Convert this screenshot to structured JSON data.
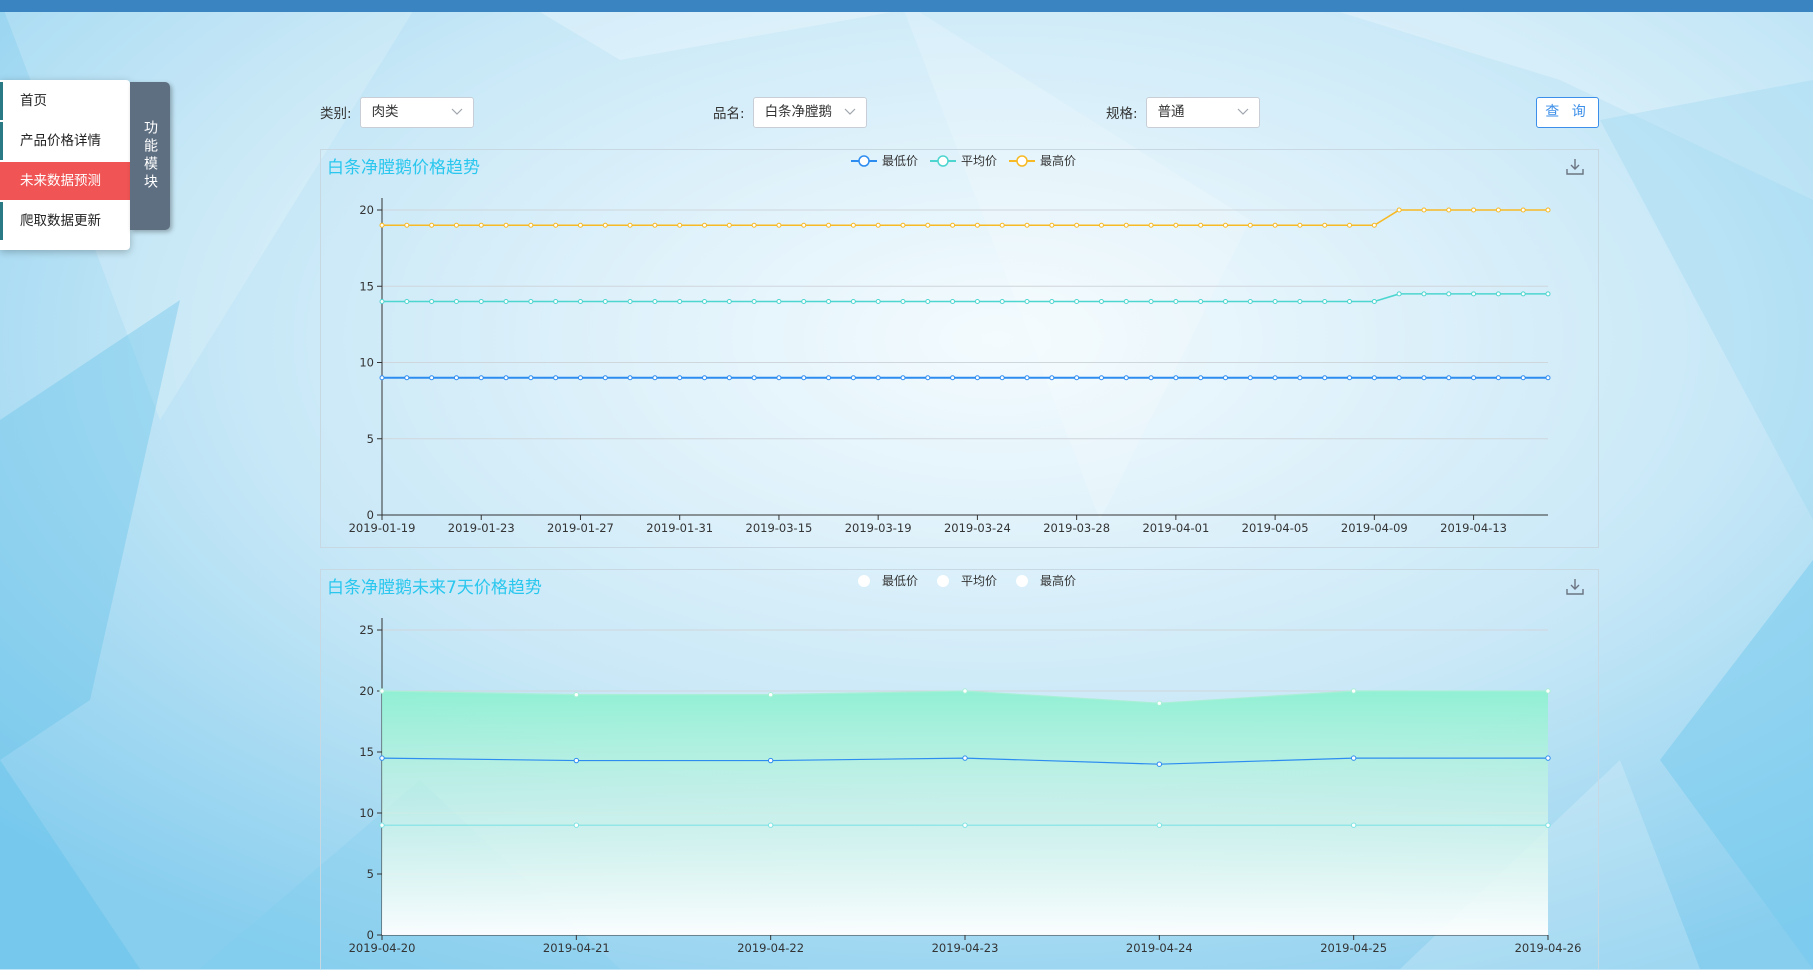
{
  "menu": {
    "items": [
      {
        "label": "首页",
        "active": false
      },
      {
        "label": "产品价格详情",
        "active": false
      },
      {
        "label": "未来数据预测",
        "active": true
      },
      {
        "label": "爬取数据更新",
        "active": false
      }
    ],
    "toggle_label": "功能模块"
  },
  "filters": {
    "category": {
      "label": "类别:",
      "value": "肉类"
    },
    "product": {
      "label": "品名:",
      "value": "白条净膛鹅"
    },
    "spec": {
      "label": "规格:",
      "value": "普通"
    },
    "query_label": "查 询"
  },
  "icons": [
    "chevron-down-icon",
    "download-icon",
    "legend-circle-icon"
  ],
  "colors": {
    "accent": "#3b8ee9",
    "title": "#29c7ee",
    "active_menu": "#f05454",
    "min_price": "#2d8cf0",
    "avg_price": "#4dd5cf",
    "max_price": "#f7b924",
    "area_fill": "#8ef0d2"
  },
  "chart_data": [
    {
      "type": "line",
      "title": "白条净膛鹅价格趋势",
      "legend_position": "top-center",
      "grid": true,
      "ylim": [
        0,
        20
      ],
      "yticks": [
        "0",
        "5",
        "10",
        "15",
        "20"
      ],
      "tick_labels": [
        "2019-01-19",
        "2019-01-23",
        "2019-01-27",
        "2019-01-31",
        "2019-03-15",
        "2019-03-19",
        "2019-03-24",
        "2019-03-28",
        "2019-04-01",
        "2019-04-05",
        "2019-04-09",
        "2019-04-13"
      ],
      "point_count": 48,
      "series": [
        {
          "name": "最低价",
          "values": [
            9,
            9,
            9,
            9,
            9,
            9,
            9,
            9,
            9,
            9,
            9,
            9,
            9,
            9,
            9,
            9,
            9,
            9,
            9,
            9,
            9,
            9,
            9,
            9,
            9,
            9,
            9,
            9,
            9,
            9,
            9,
            9,
            9,
            9,
            9,
            9,
            9,
            9,
            9,
            9,
            9,
            9,
            9,
            9,
            9,
            9,
            9,
            9
          ]
        },
        {
          "name": "平均价",
          "values": [
            14,
            14,
            14,
            14,
            14,
            14,
            14,
            14,
            14,
            14,
            14,
            14,
            14,
            14,
            14,
            14,
            14,
            14,
            14,
            14,
            14,
            14,
            14,
            14,
            14,
            14,
            14,
            14,
            14,
            14,
            14,
            14,
            14,
            14,
            14,
            14,
            14,
            14,
            14,
            14,
            14,
            14.5,
            14.5,
            14.5,
            14.5,
            14.5,
            14.5,
            14.5
          ]
        },
        {
          "name": "最高价",
          "values": [
            19,
            19,
            19,
            19,
            19,
            19,
            19,
            19,
            19,
            19,
            19,
            19,
            19,
            19,
            19,
            19,
            19,
            19,
            19,
            19,
            19,
            19,
            19,
            19,
            19,
            19,
            19,
            19,
            19,
            19,
            19,
            19,
            19,
            19,
            19,
            19,
            19,
            19,
            19,
            19,
            19,
            20,
            20,
            20,
            20,
            20,
            20,
            20
          ]
        }
      ]
    },
    {
      "type": "area",
      "title": "白条净膛鹅未来7天价格趋势",
      "legend_position": "top-center",
      "grid": true,
      "ylim": [
        0,
        25
      ],
      "yticks": [
        "0",
        "5",
        "10",
        "15",
        "20",
        "25"
      ],
      "categories": [
        "2019-04-20",
        "2019-04-21",
        "2019-04-22",
        "2019-04-23",
        "2019-04-24",
        "2019-04-25",
        "2019-04-26"
      ],
      "series": [
        {
          "name": "最低价",
          "values": [
            9,
            9,
            9,
            9,
            9,
            9,
            9
          ]
        },
        {
          "name": "平均价",
          "values": [
            14.5,
            14.3,
            14.3,
            14.5,
            14,
            14.5,
            14.5
          ]
        },
        {
          "name": "最高价",
          "values": [
            20,
            19.7,
            19.7,
            20,
            19,
            20,
            20
          ]
        }
      ]
    }
  ]
}
